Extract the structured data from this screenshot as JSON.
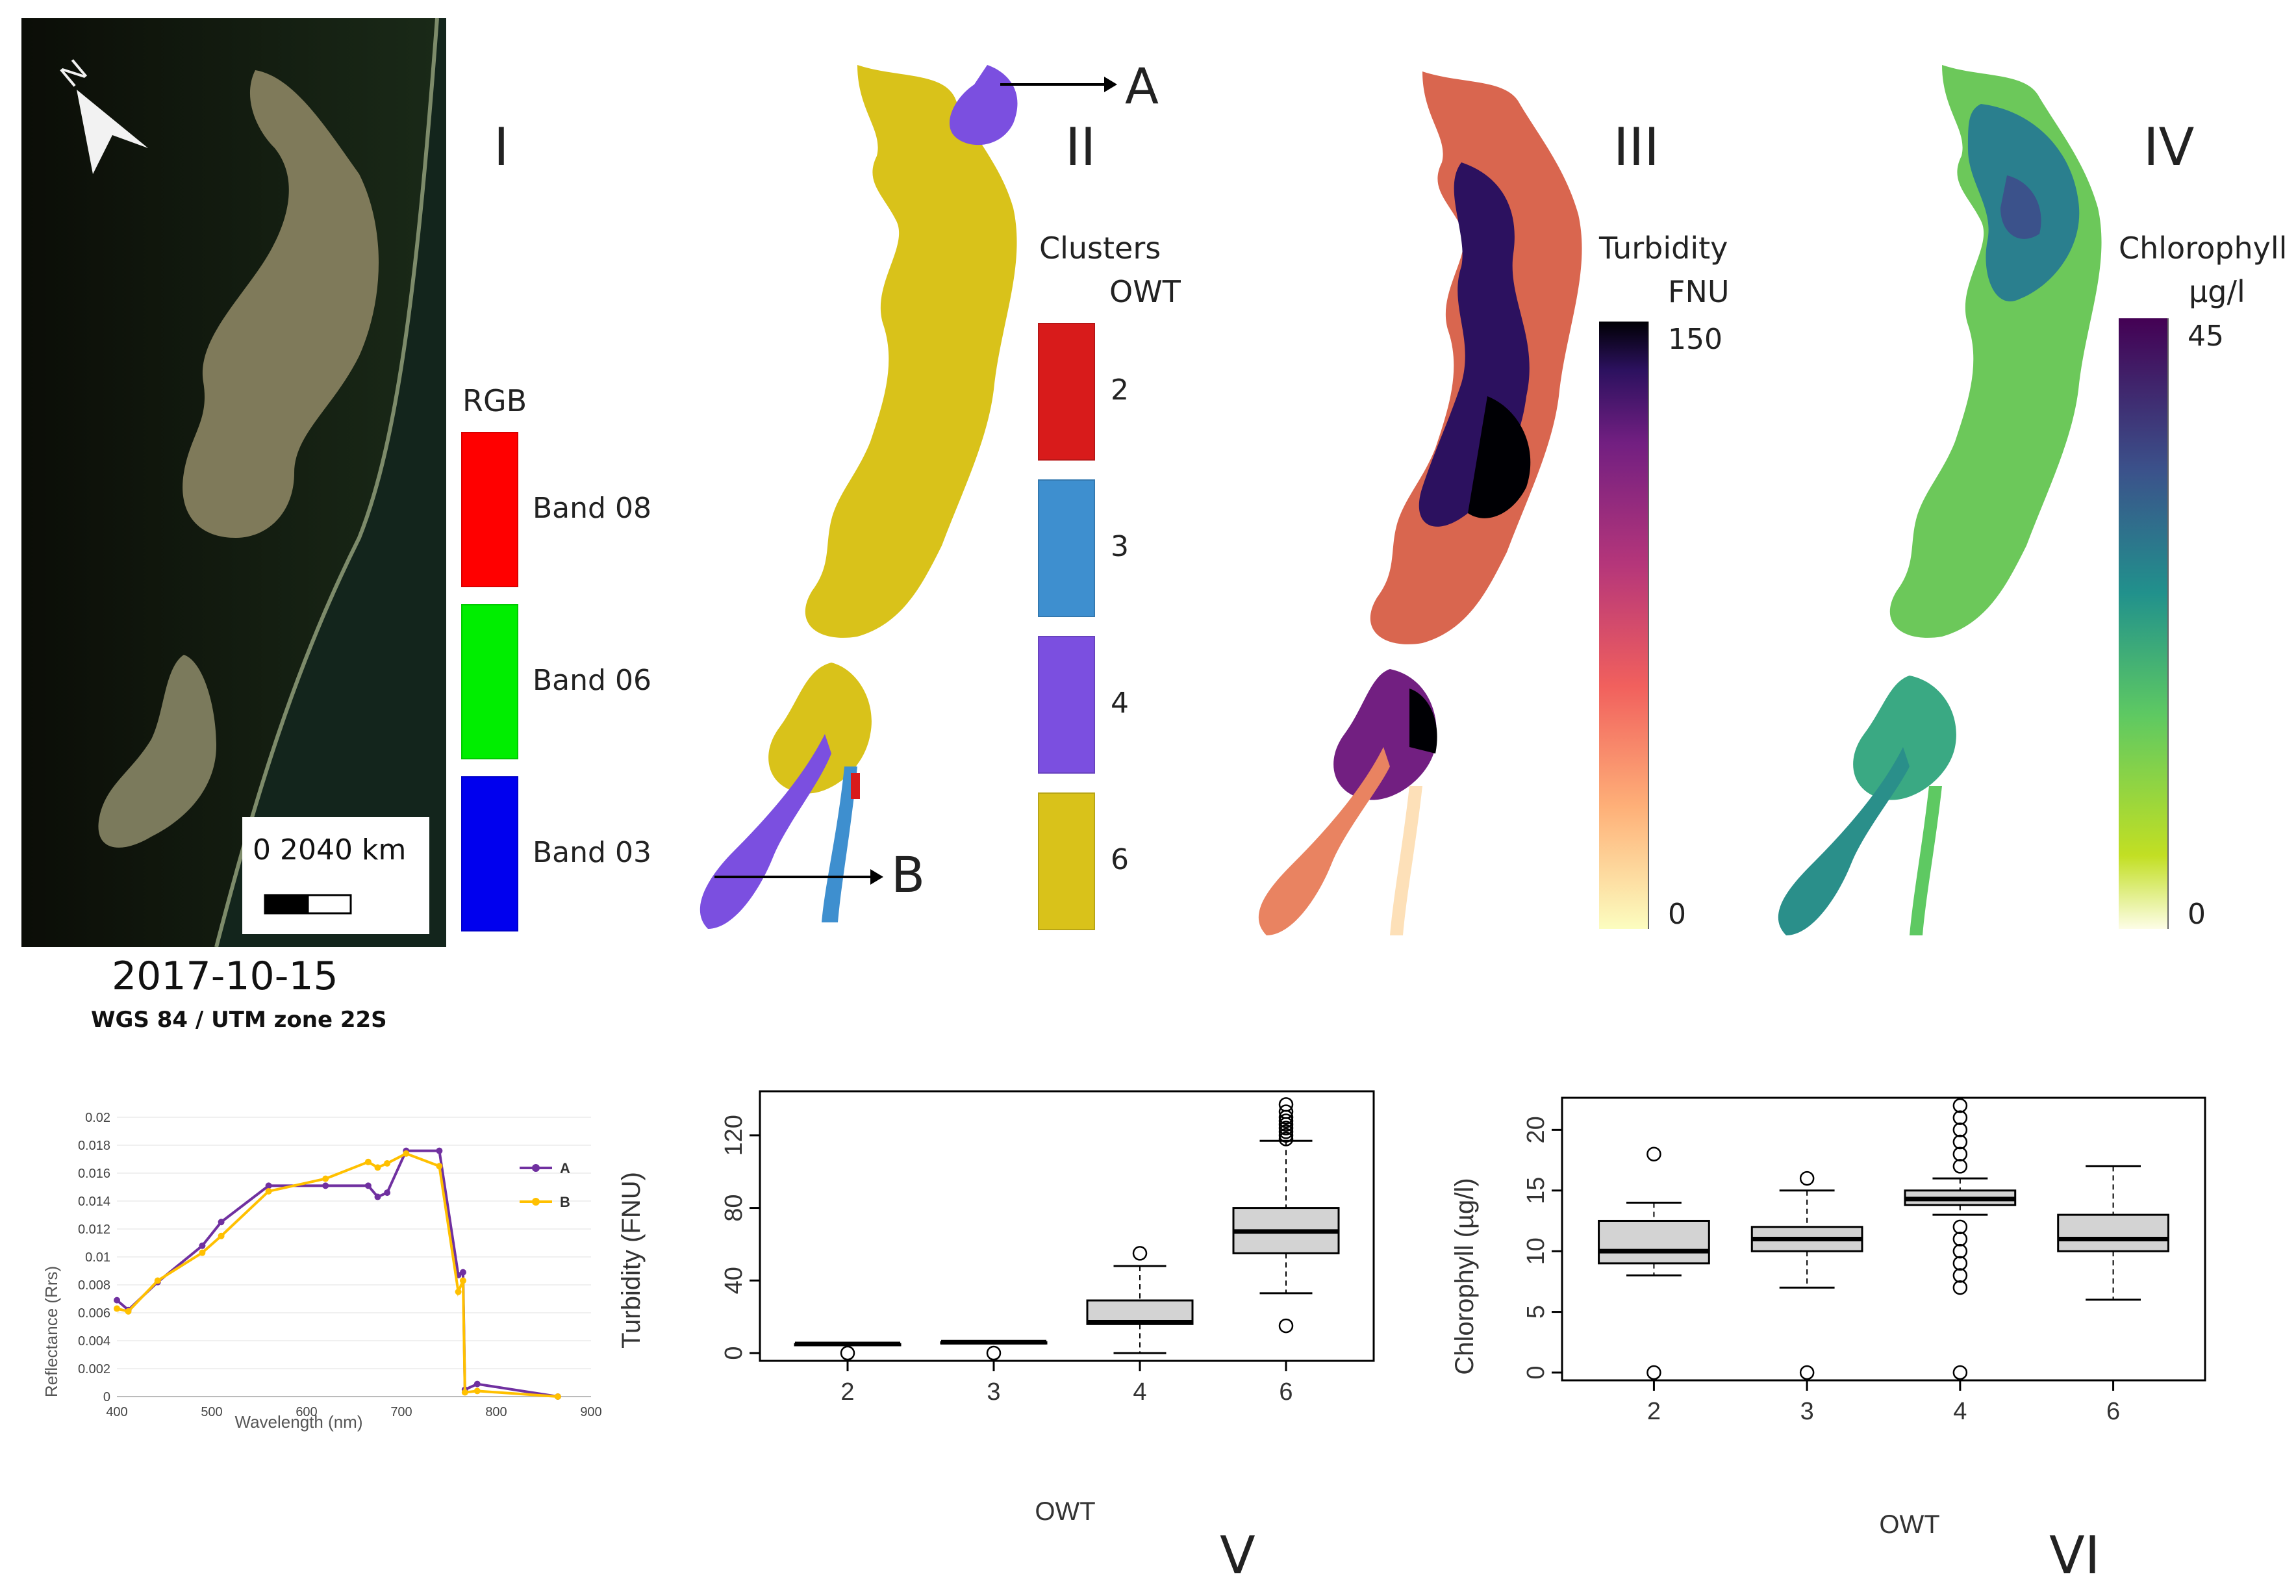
{
  "panels": {
    "I": {
      "label": "I",
      "legend_title": "RGB",
      "bands": [
        {
          "label": "Band 08",
          "color": "#ff0000"
        },
        {
          "label": "Band 06",
          "color": "#00ee00"
        },
        {
          "label": "Band 03",
          "color": "#0000ee"
        }
      ],
      "scalebar": {
        "ticks": [
          "0",
          "20",
          "40"
        ],
        "unit": "km"
      },
      "north": "N",
      "date": "2017-10-15",
      "crs": "WGS 84 / UTM zone 22S"
    },
    "II": {
      "label": "II",
      "legend_title": "Clusters",
      "legend_subtitle": "OWT",
      "classes": [
        {
          "label": "2",
          "color": "#d81b1b"
        },
        {
          "label": "3",
          "color": "#3e8fcf"
        },
        {
          "label": "4",
          "color": "#7b4fe0"
        },
        {
          "label": "6",
          "color": "#d9c21a"
        }
      ],
      "marker_a": "A",
      "marker_b": "B"
    },
    "III": {
      "label": "III",
      "legend_title": "Turbidity",
      "legend_unit": "FNU",
      "max": "150",
      "min": "0"
    },
    "IV": {
      "label": "IV",
      "legend_title": "Chlorophyll",
      "legend_unit": "µg/l",
      "max": "45",
      "min": "0"
    },
    "V": {
      "label": "V"
    },
    "VI": {
      "label": "VI"
    }
  },
  "chart_data": [
    {
      "type": "line",
      "xlabel": "Wavelength (nm)",
      "ylabel": "Reflectance (Rrs)",
      "xlim": [
        400,
        900
      ],
      "ylim": [
        0,
        0.02
      ],
      "xticks": [
        "400",
        "500",
        "600",
        "700",
        "800",
        "900"
      ],
      "yticks": [
        "0",
        "0.002",
        "0.004",
        "0.006",
        "0.008",
        "0.01",
        "0.012",
        "0.014",
        "0.016",
        "0.018",
        "0.02"
      ],
      "legend_position": "right",
      "series": [
        {
          "name": "A",
          "color": "#7030a0",
          "x": [
            400,
            412,
            443,
            490,
            510,
            560,
            620,
            665,
            675,
            685,
            705,
            740,
            760,
            765,
            767,
            780,
            865
          ],
          "y": [
            0.0069,
            0.0062,
            0.0082,
            0.0108,
            0.0125,
            0.0151,
            0.0151,
            0.0151,
            0.0143,
            0.0146,
            0.0176,
            0.0176,
            0.0087,
            0.0089,
            0.0005,
            0.0009,
            0.0
          ]
        },
        {
          "name": "B",
          "color": "#ffc000",
          "x": [
            400,
            412,
            443,
            490,
            510,
            560,
            620,
            665,
            675,
            685,
            705,
            740,
            760,
            765,
            767,
            780,
            865
          ],
          "y": [
            0.0063,
            0.0061,
            0.0083,
            0.0103,
            0.0115,
            0.0147,
            0.0156,
            0.0168,
            0.0164,
            0.0167,
            0.0174,
            0.0165,
            0.0075,
            0.0083,
            0.0003,
            0.0004,
            0.0
          ]
        }
      ]
    },
    {
      "type": "box",
      "xlabel": "OWT",
      "ylabel": "Turbidity (FNU)",
      "ylim": [
        0,
        140
      ],
      "yticks": [
        "0",
        "40",
        "80",
        "120"
      ],
      "categories": [
        "2",
        "3",
        "4",
        "6"
      ],
      "boxes": [
        {
          "q1": 5,
          "median": 5,
          "q3": 5,
          "whisker_low": 5,
          "whisker_high": 5,
          "outliers": [
            0
          ]
        },
        {
          "q1": 6,
          "median": 6,
          "q3": 6,
          "whisker_low": 6,
          "whisker_high": 6,
          "outliers": [
            0
          ]
        },
        {
          "q1": 16,
          "median": 17,
          "q3": 29,
          "whisker_low": 0,
          "whisker_high": 48,
          "outliers": [
            55
          ]
        },
        {
          "q1": 55,
          "median": 67,
          "q3": 80,
          "whisker_low": 33,
          "whisker_high": 117,
          "outliers": [
            15,
            118,
            120,
            122,
            124,
            126,
            128,
            130,
            133,
            137
          ]
        }
      ]
    },
    {
      "type": "box",
      "xlabel": "OWT",
      "ylabel": "Chlorophyll (µg/l)",
      "ylim": [
        0,
        22
      ],
      "yticks": [
        "0",
        "5",
        "10",
        "15",
        "20"
      ],
      "categories": [
        "2",
        "3",
        "4",
        "6"
      ],
      "boxes": [
        {
          "q1": 9,
          "median": 10,
          "q3": 12.5,
          "whisker_low": 8,
          "whisker_high": 14,
          "outliers": [
            0,
            18
          ]
        },
        {
          "q1": 10,
          "median": 11,
          "q3": 12,
          "whisker_low": 7,
          "whisker_high": 15,
          "outliers": [
            0,
            16
          ]
        },
        {
          "q1": 13.8,
          "median": 14.3,
          "q3": 15,
          "whisker_low": 13,
          "whisker_high": 16,
          "outliers": [
            0,
            7,
            8,
            9,
            10,
            11,
            12,
            17,
            18,
            19,
            20,
            21,
            22
          ]
        },
        {
          "q1": 10,
          "median": 11,
          "q3": 13,
          "whisker_low": 6,
          "whisker_high": 17,
          "outliers": []
        }
      ]
    }
  ]
}
